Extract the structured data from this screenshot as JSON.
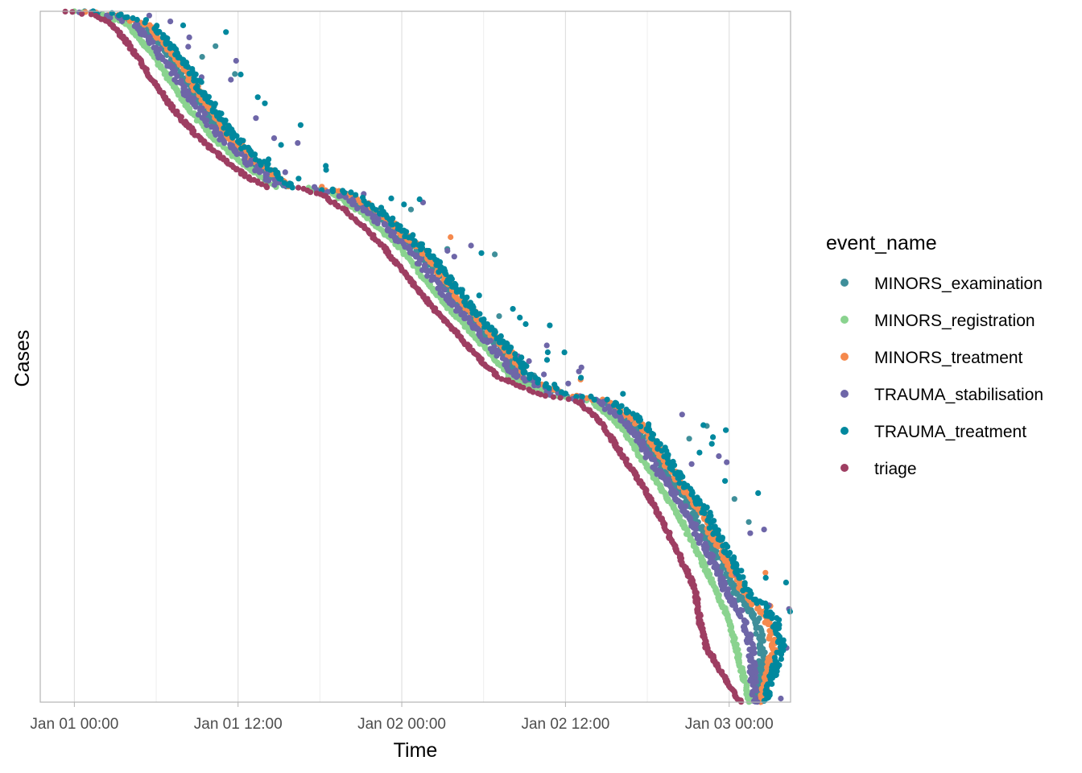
{
  "chart_data": {
    "type": "scatter",
    "title": "",
    "xlabel": "Time",
    "ylabel": "Cases",
    "x_unit": "hours since Jan 01 00:00",
    "xlim": [
      -2.5,
      52.5
    ],
    "ylim": [
      0,
      1
    ],
    "y_reversed": true,
    "grid": true,
    "x_ticks": [
      {
        "value": 0,
        "label": "Jan 01 00:00"
      },
      {
        "value": 12,
        "label": "Jan 01 12:00"
      },
      {
        "value": 24,
        "label": "Jan 02 00:00"
      },
      {
        "value": 36,
        "label": "Jan 02 12:00"
      },
      {
        "value": 48,
        "label": "Jan 03 00:00"
      }
    ],
    "x_minor_ticks": [
      6,
      18,
      30,
      42
    ],
    "legend": {
      "title": "event_name",
      "position": "right"
    },
    "series": [
      {
        "name": "MINORS_examination",
        "color": "#3F8F9A",
        "lag": 0.7,
        "jitter": 0.003,
        "outlier_rate": 0.02
      },
      {
        "name": "MINORS_registration",
        "color": "#8AD38F",
        "lag": 0.0,
        "jitter": 0.002,
        "outlier_rate": 0.0
      },
      {
        "name": "MINORS_treatment",
        "color": "#F5894D",
        "lag": 1.0,
        "jitter": 0.004,
        "outlier_rate": 0.02
      },
      {
        "name": "TRAUMA_stabilisation",
        "color": "#6E66A8",
        "lag": 0.4,
        "jitter": 0.006,
        "outlier_rate": 0.05
      },
      {
        "name": "TRAUMA_treatment",
        "color": "#00889E",
        "lag": 1.2,
        "jitter": 0.008,
        "outlier_rate": 0.08
      },
      {
        "name": "triage",
        "color": "#9E3E62",
        "lag": -0.5,
        "jitter": 0.002,
        "outlier_rate": 0.0
      }
    ],
    "case_curve": [
      [
        0,
        0.0
      ],
      [
        2,
        0.005
      ],
      [
        4,
        0.02
      ],
      [
        6,
        0.07
      ],
      [
        8,
        0.13
      ],
      [
        10,
        0.18
      ],
      [
        12,
        0.215
      ],
      [
        14,
        0.245
      ],
      [
        15,
        0.255
      ],
      [
        17,
        0.255
      ],
      [
        19,
        0.265
      ],
      [
        21,
        0.29
      ],
      [
        24,
        0.345
      ],
      [
        27,
        0.42
      ],
      [
        30,
        0.485
      ],
      [
        32,
        0.53
      ],
      [
        35,
        0.555
      ],
      [
        36.5,
        0.56
      ],
      [
        38,
        0.565
      ],
      [
        40,
        0.6
      ],
      [
        42,
        0.66
      ],
      [
        44,
        0.72
      ],
      [
        46,
        0.795
      ],
      [
        48,
        0.88
      ],
      [
        49.5,
        1.0
      ]
    ]
  }
}
